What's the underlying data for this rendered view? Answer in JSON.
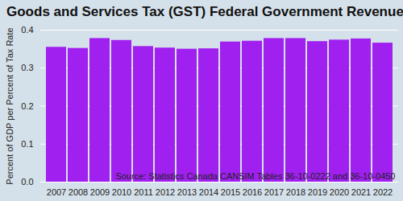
{
  "chart_data": {
    "type": "bar",
    "title": "Goods and Services Tax (GST) Federal Government Revenue",
    "y_label": "Percent of GDP per Percent of Tax Rate",
    "caption": "Source: Statistics Canada CANSIM Tables 36-10-0222 and 36-10-0450",
    "categories": [
      "2007",
      "2008",
      "2009",
      "2010",
      "2011",
      "2012",
      "2013",
      "2014",
      "2015",
      "2016",
      "2017",
      "2018",
      "2019",
      "2020",
      "2021",
      "2022"
    ],
    "values": [
      0.355,
      0.352,
      0.378,
      0.373,
      0.357,
      0.353,
      0.35,
      0.351,
      0.369,
      0.371,
      0.378,
      0.378,
      0.37,
      0.374,
      0.377,
      0.366
    ],
    "color": "#a020f0",
    "ylim": [
      0,
      0.4
    ],
    "yticks": [
      {
        "value": 0,
        "label": "0.0"
      },
      {
        "value": 0.1,
        "label": "0.1"
      },
      {
        "value": 0.2,
        "label": "0.2"
      },
      {
        "value": 0.3,
        "label": "0.3"
      },
      {
        "value": 0.4,
        "label": "0.4"
      }
    ],
    "grid": true
  }
}
